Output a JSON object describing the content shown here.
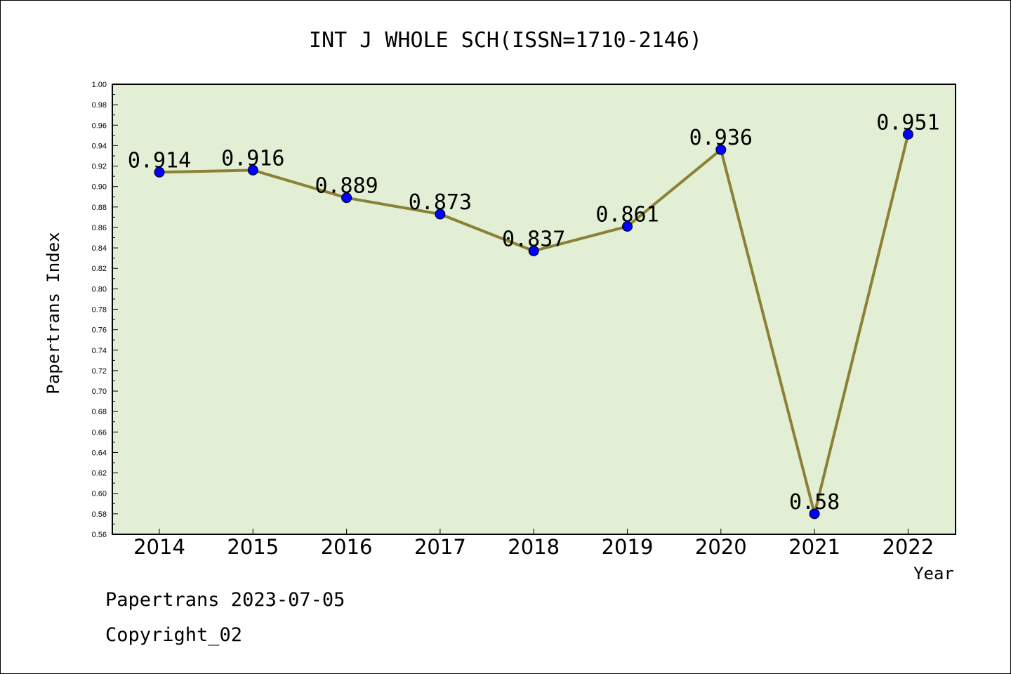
{
  "chart_data": {
    "type": "line",
    "title": "INT J WHOLE SCH(ISSN=1710-2146)",
    "xlabel": "Year",
    "ylabel": "Papertrans Index",
    "categories": [
      "2014",
      "2015",
      "2016",
      "2017",
      "2018",
      "2019",
      "2020",
      "2021",
      "2022"
    ],
    "series": [
      {
        "values": [
          0.914,
          0.916,
          0.889,
          0.873,
          0.837,
          0.861,
          0.936,
          0.58,
          0.951
        ],
        "labels": [
          "0.914",
          "0.916",
          "0.889",
          "0.873",
          "0.837",
          "0.861",
          "0.936",
          "0.58",
          "0.951"
        ]
      }
    ],
    "ylim": [
      0.56,
      1.0
    ],
    "yticks": [
      "0.56",
      "0.58",
      "0.60",
      "0.62",
      "0.64",
      "0.66",
      "0.68",
      "0.70",
      "0.72",
      "0.74",
      "0.76",
      "0.78",
      "0.80",
      "0.82",
      "0.84",
      "0.86",
      "0.88",
      "0.90",
      "0.92",
      "0.94",
      "0.96",
      "0.98",
      "1.00"
    ],
    "grid": false,
    "colors": {
      "plot_background": "#e2efd4",
      "line": "#8b8036",
      "marker": "#0000ff"
    }
  },
  "footer": {
    "line1": "Papertrans 2023-07-05",
    "line2": "Copyright_02"
  }
}
